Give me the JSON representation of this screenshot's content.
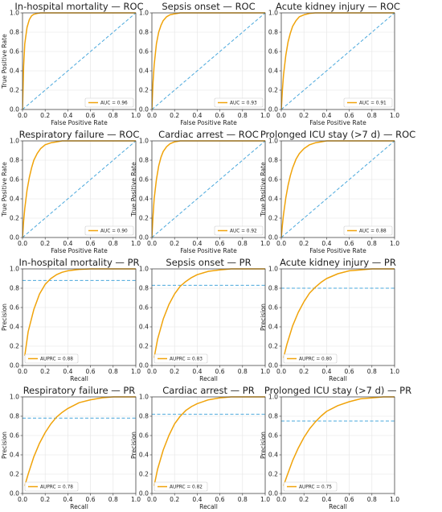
{
  "colors": {
    "curve": "#f0a30a",
    "reference": "#4aa8dc",
    "grid": "#e4e4e4"
  },
  "chart_data": [
    {
      "type": "line",
      "kind": "roc",
      "title": "In-hospital mortality — ROC",
      "xlabel": "False Positive Rate",
      "ylabel": "True Positive Rate",
      "xlim": [
        0,
        1
      ],
      "ylim": [
        0,
        1
      ],
      "x_ticks": [
        "0.0",
        "0.2",
        "0.4",
        "0.6",
        "0.8",
        "1.0"
      ],
      "y_ticks": [
        "0.0",
        "0.2",
        "0.4",
        "0.6",
        "0.8",
        "1.0"
      ],
      "grid": true,
      "legend_position": "lower-right",
      "legend": "AUC = 0.96",
      "metric": 0.96,
      "series": [
        {
          "x": [
            0,
            0.01,
            0.02,
            0.04,
            0.06,
            0.08,
            0.1,
            0.13,
            0.16,
            0.2,
            0.3,
            0.5,
            0.7,
            1.0
          ],
          "y": [
            0,
            0.45,
            0.68,
            0.85,
            0.93,
            0.97,
            0.985,
            0.995,
            1,
            1,
            1,
            1,
            1,
            1
          ]
        },
        {
          "x": [
            0,
            1
          ],
          "y": [
            0,
            1
          ]
        }
      ]
    },
    {
      "type": "line",
      "kind": "roc",
      "title": "Sepsis onset — ROC",
      "xlabel": "False Positive Rate",
      "ylabel": "",
      "xlim": [
        0,
        1
      ],
      "ylim": [
        0,
        1
      ],
      "x_ticks": [
        "0.0",
        "0.2",
        "0.4",
        "0.6",
        "0.8",
        "1.0"
      ],
      "y_ticks": [
        "0.0",
        "0.2",
        "0.4",
        "0.6",
        "0.8",
        "1.0"
      ],
      "grid": true,
      "legend_position": "lower-right",
      "legend": "AUC = 0.93",
      "metric": 0.93,
      "series": [
        {
          "x": [
            0,
            0.01,
            0.02,
            0.04,
            0.06,
            0.08,
            0.1,
            0.13,
            0.16,
            0.2,
            0.25,
            0.3,
            0.4,
            0.6,
            1.0
          ],
          "y": [
            0,
            0.28,
            0.46,
            0.68,
            0.8,
            0.87,
            0.92,
            0.96,
            0.98,
            0.99,
            1,
            1,
            1,
            1,
            1
          ]
        },
        {
          "x": [
            0,
            1
          ],
          "y": [
            0,
            1
          ]
        }
      ]
    },
    {
      "type": "line",
      "kind": "roc",
      "title": "Acute kidney injury — ROC",
      "xlabel": "False Positive Rate",
      "ylabel": "",
      "xlim": [
        0,
        1
      ],
      "ylim": [
        0,
        1
      ],
      "x_ticks": [
        "0.0",
        "0.2",
        "0.4",
        "0.6",
        "0.8",
        "1.0"
      ],
      "y_ticks": [
        "0.0",
        "0.2",
        "0.4",
        "0.6",
        "0.8",
        "1.0"
      ],
      "grid": true,
      "legend_position": "lower-right",
      "legend": "AUC = 0.91",
      "metric": 0.91,
      "series": [
        {
          "x": [
            0,
            0.01,
            0.02,
            0.04,
            0.06,
            0.08,
            0.1,
            0.13,
            0.16,
            0.2,
            0.25,
            0.3,
            0.35,
            0.45,
            0.6,
            1.0
          ],
          "y": [
            0,
            0.2,
            0.36,
            0.56,
            0.7,
            0.79,
            0.86,
            0.92,
            0.96,
            0.98,
            0.995,
            1,
            1,
            1,
            1,
            1
          ]
        },
        {
          "x": [
            0,
            1
          ],
          "y": [
            0,
            1
          ]
        }
      ]
    },
    {
      "type": "line",
      "kind": "roc",
      "title": "Respiratory failure — ROC",
      "xlabel": "False Positive Rate",
      "ylabel": "True Positive Rate",
      "xlim": [
        0,
        1
      ],
      "ylim": [
        0,
        1
      ],
      "x_ticks": [
        "0.0",
        "0.2",
        "0.4",
        "0.6",
        "0.8",
        "1.0"
      ],
      "y_ticks": [
        "0.0",
        "0.2",
        "0.4",
        "0.6",
        "0.8",
        "1.0"
      ],
      "grid": true,
      "legend_position": "lower-right",
      "legend": "AUC = 0.90",
      "metric": 0.9,
      "series": [
        {
          "x": [
            0,
            0.01,
            0.02,
            0.04,
            0.06,
            0.08,
            0.1,
            0.13,
            0.16,
            0.2,
            0.25,
            0.3,
            0.35,
            0.4,
            0.5,
            0.6,
            1.0
          ],
          "y": [
            0,
            0.17,
            0.3,
            0.49,
            0.62,
            0.72,
            0.8,
            0.87,
            0.92,
            0.96,
            0.98,
            0.99,
            1,
            1,
            1,
            1,
            1
          ]
        },
        {
          "x": [
            0,
            1
          ],
          "y": [
            0,
            1
          ]
        }
      ]
    },
    {
      "type": "line",
      "kind": "roc",
      "title": "Cardiac arrest — ROC",
      "xlabel": "False Positive Rate",
      "ylabel": "True Positive Rate",
      "xlim": [
        0,
        1
      ],
      "ylim": [
        0,
        1
      ],
      "x_ticks": [
        "0.0",
        "0.2",
        "0.4",
        "0.6",
        "0.8",
        "1.0"
      ],
      "y_ticks": [
        "0.0",
        "0.2",
        "0.4",
        "0.6",
        "0.8",
        "1.0"
      ],
      "grid": true,
      "legend_position": "lower-right",
      "legend": "AUC = 0.92",
      "metric": 0.92,
      "series": [
        {
          "x": [
            0,
            0.01,
            0.02,
            0.04,
            0.06,
            0.08,
            0.1,
            0.13,
            0.16,
            0.2,
            0.25,
            0.3,
            0.4,
            0.5,
            0.7,
            1.0
          ],
          "y": [
            0,
            0.22,
            0.4,
            0.6,
            0.74,
            0.83,
            0.89,
            0.94,
            0.97,
            0.99,
            1,
            1,
            1,
            1,
            1,
            1
          ]
        },
        {
          "x": [
            0,
            1
          ],
          "y": [
            0,
            1
          ]
        }
      ]
    },
    {
      "type": "line",
      "kind": "roc",
      "title": "Prolonged ICU stay (>7 d) — ROC",
      "xlabel": "False Positive Rate",
      "ylabel": "True Positive Rate",
      "xlim": [
        0,
        1
      ],
      "ylim": [
        0,
        1
      ],
      "x_ticks": [
        "0.0",
        "0.2",
        "0.4",
        "0.6",
        "0.8",
        "1.0"
      ],
      "y_ticks": [
        "0.0",
        "0.2",
        "0.4",
        "0.6",
        "0.8",
        "1.0"
      ],
      "grid": true,
      "legend_position": "lower-right",
      "legend": "AUC = 0.88",
      "metric": 0.88,
      "series": [
        {
          "x": [
            0,
            0.01,
            0.02,
            0.04,
            0.06,
            0.08,
            0.1,
            0.13,
            0.16,
            0.2,
            0.25,
            0.3,
            0.35,
            0.4,
            0.45,
            0.5,
            0.6,
            1.0
          ],
          "y": [
            0,
            0.13,
            0.24,
            0.41,
            0.54,
            0.64,
            0.72,
            0.81,
            0.87,
            0.92,
            0.96,
            0.98,
            0.99,
            1,
            1,
            1,
            1,
            1
          ]
        },
        {
          "x": [
            0,
            1
          ],
          "y": [
            0,
            1
          ]
        }
      ]
    },
    {
      "type": "line",
      "kind": "pr",
      "title": "In-hospital mortality — PR",
      "xlabel": "Recall",
      "ylabel": "Precision",
      "xlim": [
        0,
        1
      ],
      "ylim": [
        0,
        1
      ],
      "x_ticks": [
        "0.0",
        "0.2",
        "0.4",
        "0.6",
        "0.8",
        "1.0"
      ],
      "y_ticks": [
        "0.0",
        "0.2",
        "0.4",
        "0.6",
        "0.8",
        "1.0"
      ],
      "grid": true,
      "legend_position": "lower-left",
      "legend": "AUPRC = 0.88",
      "metric": 0.88,
      "series": [
        {
          "x": [
            0.02,
            0.05,
            0.1,
            0.15,
            0.2,
            0.25,
            0.3,
            0.35,
            0.4,
            0.5,
            0.6,
            0.7,
            0.8,
            1.0
          ],
          "y": [
            0.1,
            0.35,
            0.58,
            0.74,
            0.84,
            0.9,
            0.94,
            0.965,
            0.98,
            0.995,
            1,
            1,
            1,
            1
          ]
        },
        {
          "x": [
            0,
            1
          ],
          "y": [
            0.88,
            0.88
          ]
        }
      ]
    },
    {
      "type": "line",
      "kind": "pr",
      "title": "Sepsis onset — PR",
      "xlabel": "Recall",
      "ylabel": "",
      "xlim": [
        0,
        1
      ],
      "ylim": [
        0,
        1
      ],
      "x_ticks": [
        "0.0",
        "0.2",
        "0.4",
        "0.6",
        "0.8",
        "1.0"
      ],
      "y_ticks": [
        "0.0",
        "0.2",
        "0.4",
        "0.6",
        "0.8",
        "1.0"
      ],
      "grid": true,
      "legend_position": "lower-left",
      "legend": "AUPRC = 0.83",
      "metric": 0.83,
      "series": [
        {
          "x": [
            0.02,
            0.05,
            0.1,
            0.15,
            0.2,
            0.25,
            0.3,
            0.35,
            0.4,
            0.5,
            0.6,
            0.7,
            0.8,
            0.9,
            1.0
          ],
          "y": [
            0.08,
            0.27,
            0.48,
            0.63,
            0.74,
            0.82,
            0.87,
            0.91,
            0.94,
            0.975,
            0.99,
            1,
            1,
            1,
            1
          ]
        },
        {
          "x": [
            0,
            1
          ],
          "y": [
            0.83,
            0.83
          ]
        }
      ]
    },
    {
      "type": "line",
      "kind": "pr",
      "title": "Acute kidney injury — PR",
      "xlabel": "Recall",
      "ylabel": "Precision",
      "xlim": [
        0,
        1
      ],
      "ylim": [
        0,
        1
      ],
      "x_ticks": [
        "0.0",
        "0.2",
        "0.4",
        "0.6",
        "0.8",
        "1.0"
      ],
      "y_ticks": [
        "0.0",
        "0.2",
        "0.4",
        "0.6",
        "0.8",
        "1.0"
      ],
      "grid": true,
      "legend_position": "lower-left",
      "legend": "AUPRC = 0.80",
      "metric": 0.8,
      "series": [
        {
          "x": [
            0.02,
            0.05,
            0.1,
            0.15,
            0.2,
            0.25,
            0.3,
            0.35,
            0.4,
            0.5,
            0.6,
            0.7,
            0.8,
            0.9,
            1.0
          ],
          "y": [
            0.08,
            0.22,
            0.41,
            0.55,
            0.66,
            0.75,
            0.81,
            0.86,
            0.9,
            0.95,
            0.98,
            0.99,
            1,
            1,
            1
          ]
        },
        {
          "x": [
            0,
            1
          ],
          "y": [
            0.8,
            0.8
          ]
        }
      ]
    },
    {
      "type": "line",
      "kind": "pr",
      "title": "Respiratory failure — PR",
      "xlabel": "Recall",
      "ylabel": "Precision",
      "xlim": [
        0,
        1
      ],
      "ylim": [
        0,
        1
      ],
      "x_ticks": [
        "0.0",
        "0.2",
        "0.4",
        "0.6",
        "0.8",
        "1.0"
      ],
      "y_ticks": [
        "0.0",
        "0.2",
        "0.4",
        "0.6",
        "0.8",
        "1.0"
      ],
      "grid": true,
      "legend_position": "lower-left",
      "legend": "AUPRC = 0.78",
      "metric": 0.78,
      "series": [
        {
          "x": [
            0.02,
            0.05,
            0.1,
            0.15,
            0.2,
            0.25,
            0.3,
            0.35,
            0.4,
            0.5,
            0.6,
            0.7,
            0.8,
            0.9,
            1.0
          ],
          "y": [
            0.08,
            0.2,
            0.38,
            0.52,
            0.63,
            0.72,
            0.79,
            0.84,
            0.88,
            0.94,
            0.97,
            0.99,
            1,
            1,
            1
          ]
        },
        {
          "x": [
            0,
            1
          ],
          "y": [
            0.78,
            0.78
          ]
        }
      ]
    },
    {
      "type": "line",
      "kind": "pr",
      "title": "Cardiac arrest — PR",
      "xlabel": "Recall",
      "ylabel": "Precision",
      "xlim": [
        0,
        1
      ],
      "ylim": [
        0,
        1
      ],
      "x_ticks": [
        "0.0",
        "0.2",
        "0.4",
        "0.6",
        "0.8",
        "1.0"
      ],
      "y_ticks": [
        "0.0",
        "0.2",
        "0.4",
        "0.6",
        "0.8",
        "1.0"
      ],
      "grid": true,
      "legend_position": "lower-left",
      "legend": "AUPRC = 0.82",
      "metric": 0.82,
      "series": [
        {
          "x": [
            0.02,
            0.05,
            0.1,
            0.15,
            0.2,
            0.25,
            0.3,
            0.35,
            0.4,
            0.5,
            0.6,
            0.7,
            0.8,
            0.9,
            1.0
          ],
          "y": [
            0.08,
            0.25,
            0.45,
            0.6,
            0.72,
            0.8,
            0.86,
            0.9,
            0.93,
            0.97,
            0.99,
            1,
            1,
            1,
            1
          ]
        },
        {
          "x": [
            0,
            1
          ],
          "y": [
            0.82,
            0.82
          ]
        }
      ]
    },
    {
      "type": "line",
      "kind": "pr",
      "title": "Prolonged ICU stay (>7 d) — PR",
      "xlabel": "Recall",
      "ylabel": "Precision",
      "xlim": [
        0,
        1
      ],
      "ylim": [
        0,
        1
      ],
      "x_ticks": [
        "0.0",
        "0.2",
        "0.4",
        "0.6",
        "0.8",
        "1.0"
      ],
      "y_ticks": [
        "0.0",
        "0.2",
        "0.4",
        "0.6",
        "0.8",
        "1.0"
      ],
      "grid": true,
      "legend_position": "lower-left",
      "legend": "AUPRC = 0.75",
      "metric": 0.75,
      "series": [
        {
          "x": [
            0.02,
            0.05,
            0.1,
            0.15,
            0.2,
            0.25,
            0.3,
            0.35,
            0.4,
            0.5,
            0.6,
            0.7,
            0.8,
            0.9,
            1.0
          ],
          "y": [
            0.08,
            0.18,
            0.34,
            0.47,
            0.58,
            0.67,
            0.74,
            0.8,
            0.85,
            0.91,
            0.95,
            0.98,
            0.99,
            1,
            1
          ]
        },
        {
          "x": [
            0,
            1
          ],
          "y": [
            0.75,
            0.75
          ]
        }
      ]
    }
  ]
}
